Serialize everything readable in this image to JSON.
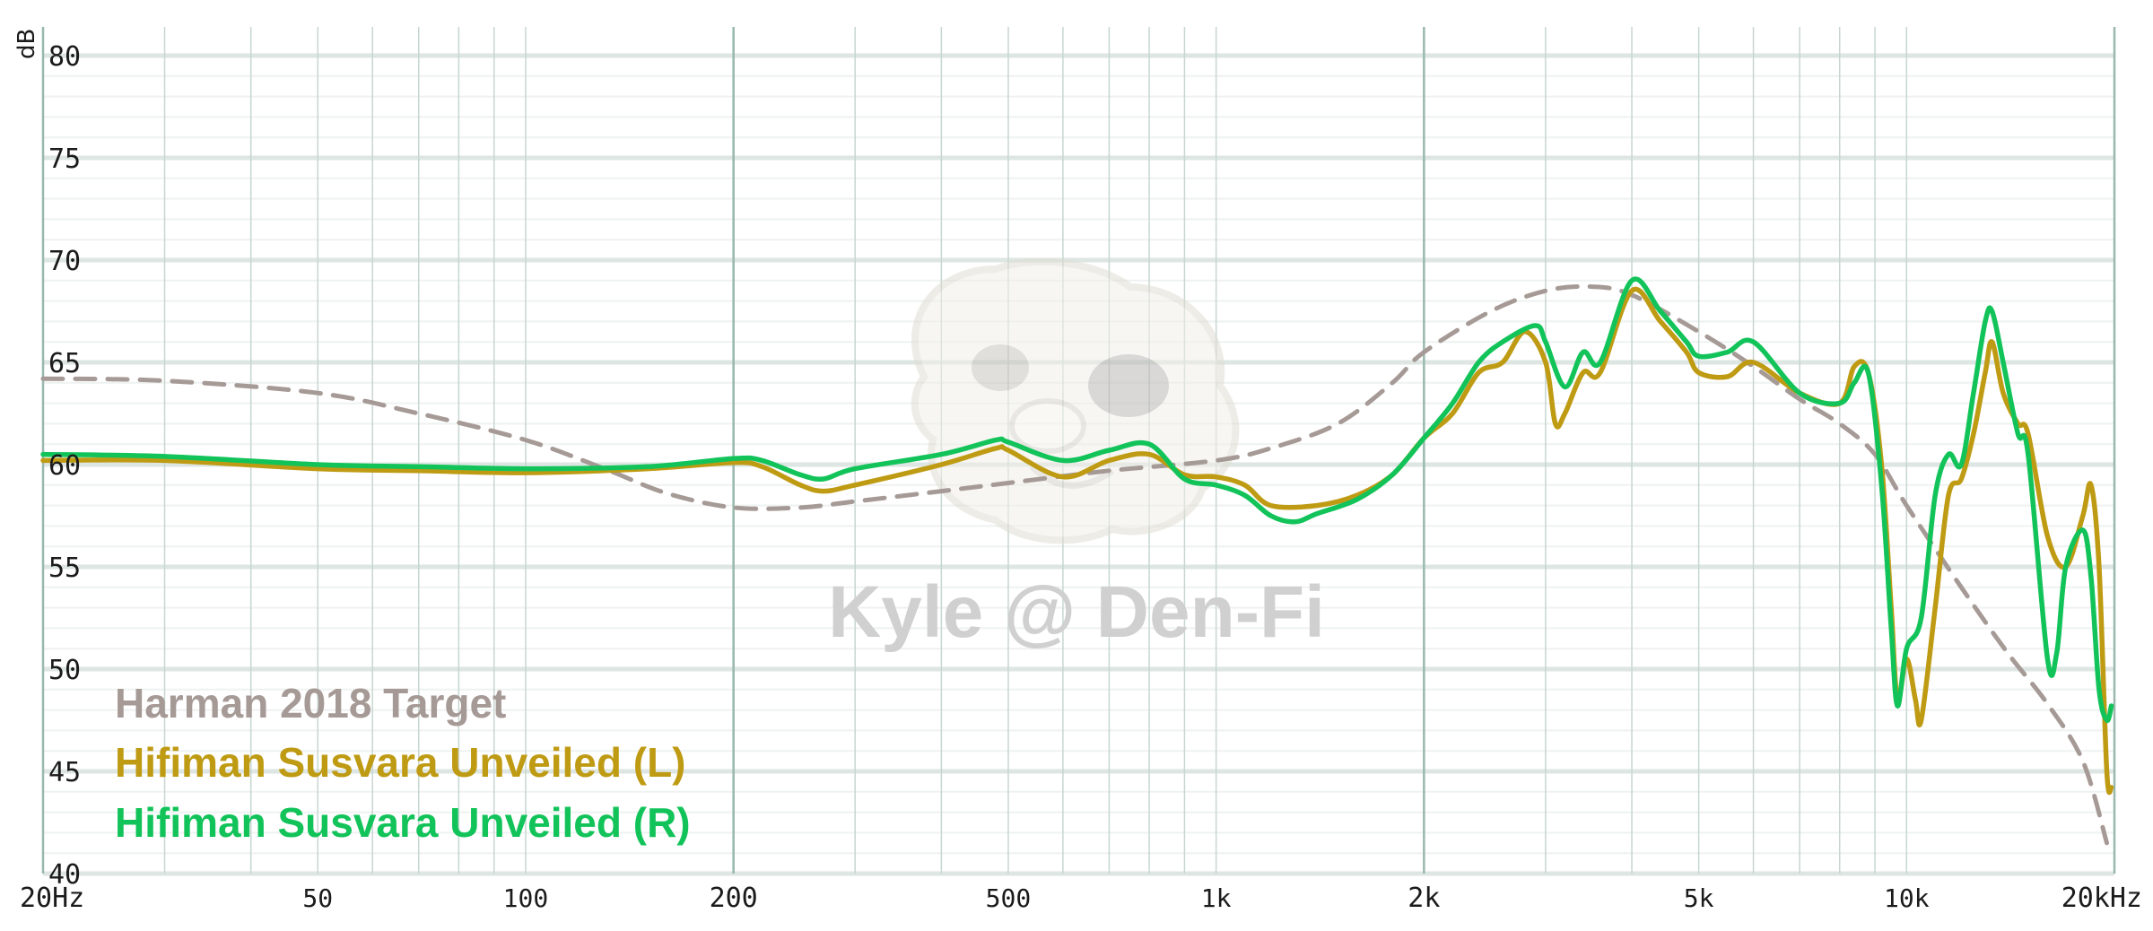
{
  "chart_data": {
    "type": "line",
    "ylabel": "dB",
    "ylim": [
      40,
      80
    ],
    "yticks": [
      40,
      45,
      50,
      55,
      60,
      65,
      70,
      75,
      80
    ],
    "xscale": "log",
    "xlim": [
      20,
      20000
    ],
    "xticks": [
      {
        "value": 20,
        "label": "20Hz",
        "major": true
      },
      {
        "value": 50,
        "label": "50",
        "major": false
      },
      {
        "value": 100,
        "label": "100",
        "major": false
      },
      {
        "value": 200,
        "label": "200",
        "major": true
      },
      {
        "value": 500,
        "label": "500",
        "major": false
      },
      {
        "value": 1000,
        "label": "1k",
        "major": false
      },
      {
        "value": 2000,
        "label": "2k",
        "major": true
      },
      {
        "value": 5000,
        "label": "5k",
        "major": false
      },
      {
        "value": 10000,
        "label": "10k",
        "major": false
      },
      {
        "value": 20000,
        "label": "20kHz",
        "major": true
      }
    ],
    "grid": true,
    "legend_position": "bottom-left",
    "watermark": "Kyle @ Den-Fi",
    "series": [
      {
        "name": "Harman 2018 Target",
        "color": "#a69a96",
        "dashed": true,
        "points": [
          [
            20,
            64.2
          ],
          [
            30,
            64.1
          ],
          [
            50,
            63.5
          ],
          [
            70,
            62.5
          ],
          [
            100,
            61.2
          ],
          [
            130,
            59.8
          ],
          [
            160,
            58.6
          ],
          [
            200,
            57.9
          ],
          [
            250,
            57.9
          ],
          [
            300,
            58.2
          ],
          [
            400,
            58.7
          ],
          [
            500,
            59.1
          ],
          [
            700,
            59.7
          ],
          [
            1000,
            60.2
          ],
          [
            1200,
            60.8
          ],
          [
            1500,
            62.0
          ],
          [
            1800,
            64.0
          ],
          [
            2000,
            65.5
          ],
          [
            2500,
            67.5
          ],
          [
            3000,
            68.5
          ],
          [
            3500,
            68.7
          ],
          [
            4000,
            68.3
          ],
          [
            5000,
            66.5
          ],
          [
            6000,
            64.8
          ],
          [
            7000,
            63.2
          ],
          [
            8000,
            62.0
          ],
          [
            9000,
            60.5
          ],
          [
            10000,
            58.0
          ],
          [
            12000,
            54.0
          ],
          [
            14000,
            50.8
          ],
          [
            16000,
            48.3
          ],
          [
            18000,
            45.5
          ],
          [
            19500,
            41.5
          ]
        ]
      },
      {
        "name": "Hifiman Susvara Unveiled (L)",
        "color": "#bf9b14",
        "dashed": false,
        "points": [
          [
            20,
            60.2
          ],
          [
            30,
            60.2
          ],
          [
            50,
            59.8
          ],
          [
            70,
            59.7
          ],
          [
            100,
            59.6
          ],
          [
            150,
            59.8
          ],
          [
            200,
            60.1
          ],
          [
            220,
            59.9
          ],
          [
            250,
            59.0
          ],
          [
            270,
            58.7
          ],
          [
            300,
            59.0
          ],
          [
            400,
            60.0
          ],
          [
            480,
            60.8
          ],
          [
            500,
            60.7
          ],
          [
            600,
            59.4
          ],
          [
            700,
            60.2
          ],
          [
            800,
            60.5
          ],
          [
            900,
            59.5
          ],
          [
            1000,
            59.4
          ],
          [
            1100,
            59.0
          ],
          [
            1200,
            58.0
          ],
          [
            1400,
            58.0
          ],
          [
            1600,
            58.5
          ],
          [
            1800,
            59.5
          ],
          [
            2000,
            61.3
          ],
          [
            2200,
            62.5
          ],
          [
            2400,
            64.5
          ],
          [
            2600,
            65.0
          ],
          [
            2800,
            66.5
          ],
          [
            3000,
            65.0
          ],
          [
            3100,
            62.0
          ],
          [
            3200,
            62.5
          ],
          [
            3400,
            64.5
          ],
          [
            3600,
            64.5
          ],
          [
            4000,
            68.5
          ],
          [
            4400,
            67.0
          ],
          [
            4800,
            65.5
          ],
          [
            5000,
            64.5
          ],
          [
            5500,
            64.3
          ],
          [
            6000,
            65.0
          ],
          [
            7000,
            63.5
          ],
          [
            8000,
            63.0
          ],
          [
            8400,
            64.8
          ],
          [
            8800,
            64.5
          ],
          [
            9200,
            60.0
          ],
          [
            9500,
            53.0
          ],
          [
            9700,
            48.5
          ],
          [
            10000,
            50.5
          ],
          [
            10300,
            48.5
          ],
          [
            10500,
            47.5
          ],
          [
            11000,
            53.0
          ],
          [
            11500,
            58.5
          ],
          [
            12000,
            59.3
          ],
          [
            12500,
            61.5
          ],
          [
            13000,
            64.5
          ],
          [
            13300,
            66.0
          ],
          [
            13800,
            63.5
          ],
          [
            14500,
            62.0
          ],
          [
            15000,
            61.5
          ],
          [
            16000,
            56.5
          ],
          [
            17000,
            55.0
          ],
          [
            18000,
            57.5
          ],
          [
            18500,
            59.0
          ],
          [
            19000,
            55.0
          ],
          [
            19500,
            45.0
          ],
          [
            19800,
            44.2
          ]
        ]
      },
      {
        "name": "Hifiman Susvara Unveiled (R)",
        "color": "#12c35a",
        "dashed": false,
        "points": [
          [
            20,
            60.5
          ],
          [
            30,
            60.4
          ],
          [
            50,
            60.0
          ],
          [
            70,
            59.9
          ],
          [
            100,
            59.8
          ],
          [
            150,
            59.9
          ],
          [
            200,
            60.3
          ],
          [
            220,
            60.2
          ],
          [
            250,
            59.5
          ],
          [
            270,
            59.3
          ],
          [
            300,
            59.8
          ],
          [
            400,
            60.5
          ],
          [
            480,
            61.2
          ],
          [
            500,
            61.1
          ],
          [
            600,
            60.2
          ],
          [
            700,
            60.7
          ],
          [
            800,
            61.0
          ],
          [
            900,
            59.3
          ],
          [
            1000,
            59.0
          ],
          [
            1100,
            58.5
          ],
          [
            1200,
            57.5
          ],
          [
            1300,
            57.2
          ],
          [
            1400,
            57.6
          ],
          [
            1600,
            58.3
          ],
          [
            1800,
            59.5
          ],
          [
            2000,
            61.3
          ],
          [
            2200,
            63.0
          ],
          [
            2400,
            65.0
          ],
          [
            2600,
            66.0
          ],
          [
            2900,
            66.8
          ],
          [
            3000,
            66.0
          ],
          [
            3200,
            63.8
          ],
          [
            3400,
            65.5
          ],
          [
            3600,
            65.0
          ],
          [
            4000,
            69.0
          ],
          [
            4400,
            67.5
          ],
          [
            4800,
            66.0
          ],
          [
            5000,
            65.3
          ],
          [
            5500,
            65.5
          ],
          [
            6000,
            66.0
          ],
          [
            7000,
            63.5
          ],
          [
            8000,
            63.0
          ],
          [
            8400,
            64.0
          ],
          [
            8800,
            64.5
          ],
          [
            9200,
            59.0
          ],
          [
            9500,
            52.0
          ],
          [
            9700,
            48.2
          ],
          [
            10000,
            51.0
          ],
          [
            10500,
            52.5
          ],
          [
            11000,
            58.5
          ],
          [
            11500,
            60.5
          ],
          [
            12000,
            60.0
          ],
          [
            12500,
            63.5
          ],
          [
            13000,
            67.0
          ],
          [
            13300,
            67.5
          ],
          [
            13800,
            65.0
          ],
          [
            14500,
            61.5
          ],
          [
            15000,
            60.5
          ],
          [
            16000,
            50.5
          ],
          [
            16500,
            50.8
          ],
          [
            17000,
            55.0
          ],
          [
            18000,
            56.8
          ],
          [
            18500,
            54.5
          ],
          [
            19000,
            49.0
          ],
          [
            19500,
            47.5
          ],
          [
            19800,
            48.2
          ]
        ]
      }
    ]
  }
}
